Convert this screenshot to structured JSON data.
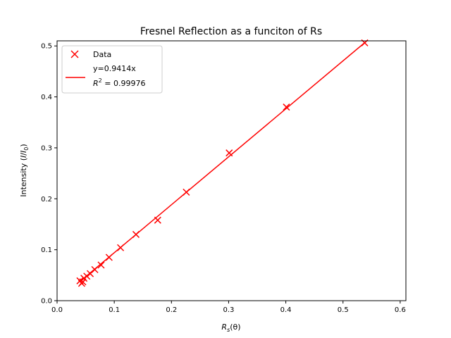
{
  "chart_data": {
    "type": "scatter",
    "title": "Fresnel Reflection as a funciton of Rs",
    "xlabel": "R_s(θ)",
    "xlabel_main": "R",
    "xlabel_sub": "s",
    "xlabel_tail": "(θ)",
    "ylabel": "Intensity (I/I_0)",
    "ylabel_head": "Intensity (",
    "ylabel_i": "I",
    "ylabel_mid": "/",
    "ylabel_i0": "I",
    "ylabel_sub": "0",
    "ylabel_tail": ")",
    "xlim": [
      0.0,
      0.61
    ],
    "ylim": [
      0.0,
      0.51
    ],
    "xticks": [
      0.0,
      0.1,
      0.2,
      0.3,
      0.4,
      0.5,
      0.6
    ],
    "xtick_labels": [
      "0.0",
      "0.1",
      "0.2",
      "0.3",
      "0.4",
      "0.5",
      "0.6"
    ],
    "yticks": [
      0.0,
      0.1,
      0.2,
      0.3,
      0.4,
      0.5
    ],
    "ytick_labels": [
      "0.0",
      "0.1",
      "0.2",
      "0.3",
      "0.4",
      "0.5"
    ],
    "grid": false,
    "legend_position": "top-left",
    "series": [
      {
        "name": "Data",
        "kind": "scatter",
        "marker": "x",
        "color": "#ff0000",
        "x": [
          0.04,
          0.043,
          0.045,
          0.047,
          0.052,
          0.058,
          0.066,
          0.077,
          0.091,
          0.111,
          0.138,
          0.176,
          0.226,
          0.301,
          0.401,
          0.538
        ],
        "y": [
          0.039,
          0.034,
          0.037,
          0.044,
          0.048,
          0.053,
          0.061,
          0.07,
          0.085,
          0.104,
          0.13,
          0.158,
          0.213,
          0.29,
          0.38,
          0.506
        ]
      },
      {
        "name": "y=0.9414x",
        "name_line2_head": "R",
        "name_line2_sup": "2",
        "name_line2_tail": " = 0.99976",
        "kind": "line",
        "color": "#ff0000",
        "slope": 0.9414,
        "x_range": [
          0.04,
          0.541
        ]
      }
    ]
  }
}
